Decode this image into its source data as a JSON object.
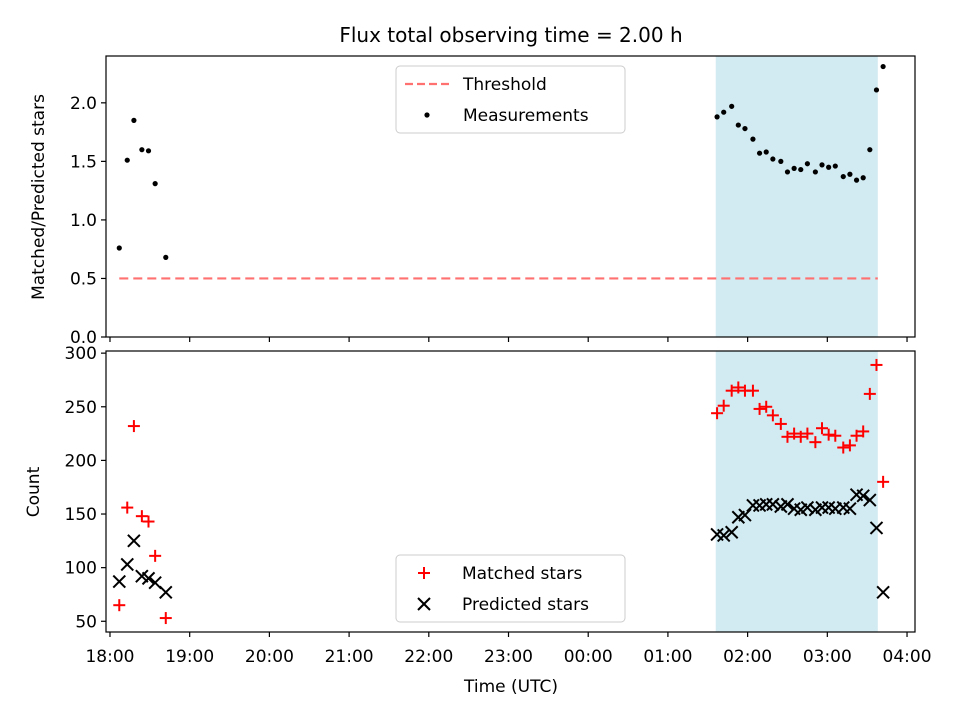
{
  "figure": {
    "title": "Flux total observing time = 2.00 h",
    "shared_xlabel": "Time (UTC)",
    "shared_xticks": [
      "18:00",
      "19:00",
      "20:00",
      "21:00",
      "22:00",
      "23:00",
      "00:00",
      "01:00",
      "02:00",
      "03:00",
      "04:00"
    ],
    "shaded_interval": {
      "start": "01:36",
      "end": "03:38",
      "color": "#add8e6"
    }
  },
  "chart_data": [
    {
      "type": "scatter",
      "ylabel": "Matched/Predicted stars",
      "ylim": [
        0,
        2.4
      ],
      "yticks": [
        0.0,
        0.5,
        1.0,
        1.5,
        2.0
      ],
      "ytick_labels": [
        "0.0",
        "0.5",
        "1.0",
        "1.5",
        "2.0"
      ],
      "xlim": [
        "17:57",
        "04:06"
      ],
      "legend": {
        "placement": "upper center",
        "entries": [
          "Threshold",
          "Measurements"
        ]
      },
      "threshold": {
        "name": "Threshold",
        "value": 0.5,
        "x_start": "18:07",
        "x_end": "03:38",
        "color": "#ff7070",
        "style": "dashed"
      },
      "series": [
        {
          "name": "Measurements",
          "color": "#000000",
          "marker": "dot",
          "x": [
            "18:07",
            "18:13",
            "18:18",
            "18:24",
            "18:29",
            "18:34",
            "18:42",
            "01:37",
            "01:42",
            "01:48",
            "01:53",
            "01:58",
            "02:04",
            "02:09",
            "02:14",
            "02:19",
            "02:25",
            "02:30",
            "02:35",
            "02:40",
            "02:45",
            "02:51",
            "02:56",
            "03:01",
            "03:06",
            "03:12",
            "03:17",
            "03:22",
            "03:27",
            "03:32",
            "03:37",
            "03:42"
          ],
          "y": [
            0.76,
            1.51,
            1.85,
            1.6,
            1.59,
            1.31,
            0.68,
            1.88,
            1.92,
            1.97,
            1.81,
            1.78,
            1.69,
            1.57,
            1.58,
            1.52,
            1.5,
            1.41,
            1.44,
            1.43,
            1.48,
            1.41,
            1.47,
            1.45,
            1.46,
            1.37,
            1.39,
            1.34,
            1.36,
            1.6,
            2.11,
            2.31
          ]
        }
      ]
    },
    {
      "type": "scatter",
      "ylabel": "Count",
      "ylim": [
        40,
        302
      ],
      "yticks": [
        50,
        100,
        150,
        200,
        250,
        300
      ],
      "ytick_labels": [
        "50",
        "100",
        "150",
        "200",
        "250",
        "300"
      ],
      "xlabel": "Time (UTC)",
      "xlim": [
        "17:57",
        "04:06"
      ],
      "legend": {
        "placement": "lower center",
        "entries": [
          "Matched stars",
          "Predicted stars"
        ]
      },
      "series": [
        {
          "name": "Matched stars",
          "color": "#ff0000",
          "marker": "+",
          "x": [
            "18:07",
            "18:13",
            "18:18",
            "18:24",
            "18:29",
            "18:34",
            "18:42",
            "01:37",
            "01:42",
            "01:48",
            "01:53",
            "01:58",
            "02:04",
            "02:09",
            "02:14",
            "02:19",
            "02:25",
            "02:30",
            "02:35",
            "02:40",
            "02:45",
            "02:51",
            "02:56",
            "03:01",
            "03:06",
            "03:12",
            "03:17",
            "03:22",
            "03:27",
            "03:32",
            "03:37",
            "03:42"
          ],
          "y": [
            65,
            156,
            232,
            148,
            143,
            111,
            53,
            244,
            251,
            265,
            268,
            265,
            265,
            248,
            250,
            242,
            234,
            222,
            225,
            222,
            225,
            217,
            230,
            224,
            223,
            212,
            214,
            223,
            227,
            262,
            289,
            180
          ]
        },
        {
          "name": "Predicted stars",
          "color": "#000000",
          "marker": "x",
          "x": [
            "18:07",
            "18:13",
            "18:18",
            "18:24",
            "18:29",
            "18:34",
            "18:42",
            "01:37",
            "01:42",
            "01:48",
            "01:53",
            "01:58",
            "02:04",
            "02:09",
            "02:14",
            "02:19",
            "02:25",
            "02:30",
            "02:35",
            "02:40",
            "02:45",
            "02:51",
            "02:56",
            "03:01",
            "03:06",
            "03:12",
            "03:17",
            "03:22",
            "03:27",
            "03:32",
            "03:37",
            "03:42"
          ],
          "y": [
            87,
            103,
            125,
            92,
            90,
            86,
            77,
            131,
            130,
            133,
            147,
            149,
            158,
            158,
            159,
            159,
            157,
            159,
            155,
            154,
            156,
            154,
            156,
            156,
            155,
            156,
            155,
            168,
            167,
            163,
            137,
            77
          ]
        }
      ]
    }
  ]
}
